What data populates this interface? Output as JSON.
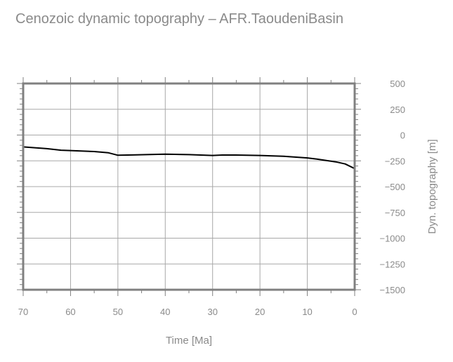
{
  "chart_data": {
    "type": "line",
    "title": "Cenozoic dynamic topography – AFR.TaoudeniBasin",
    "xlabel": "Time [Ma]",
    "ylabel": "Dyn. topography [m]",
    "xlim": [
      70,
      0
    ],
    "ylim": [
      -1500,
      500
    ],
    "x_ticks": [
      70,
      60,
      50,
      40,
      30,
      20,
      10,
      0
    ],
    "y_ticks": [
      500,
      250,
      0,
      -250,
      -500,
      -750,
      -1000,
      -1250,
      -1500
    ],
    "x_tick_labels": [
      "70",
      "60",
      "50",
      "40",
      "30",
      "20",
      "10",
      "0"
    ],
    "y_tick_labels": [
      "500",
      "250",
      "0",
      "−250",
      "−500",
      "−750",
      "−1000",
      "−1250",
      "−1500"
    ],
    "grid": true,
    "series": [
      {
        "color": "#000000",
        "x": [
          70,
          65,
          62,
          60,
          55,
          52,
          50,
          47,
          44,
          40,
          35,
          30,
          28,
          25,
          20,
          15,
          10,
          8,
          6,
          4,
          2,
          0
        ],
        "y": [
          -115,
          -132,
          -147,
          -150,
          -160,
          -172,
          -196,
          -193,
          -190,
          -186,
          -190,
          -198,
          -194,
          -194,
          -198,
          -206,
          -222,
          -233,
          -246,
          -260,
          -280,
          -325
        ]
      }
    ]
  }
}
